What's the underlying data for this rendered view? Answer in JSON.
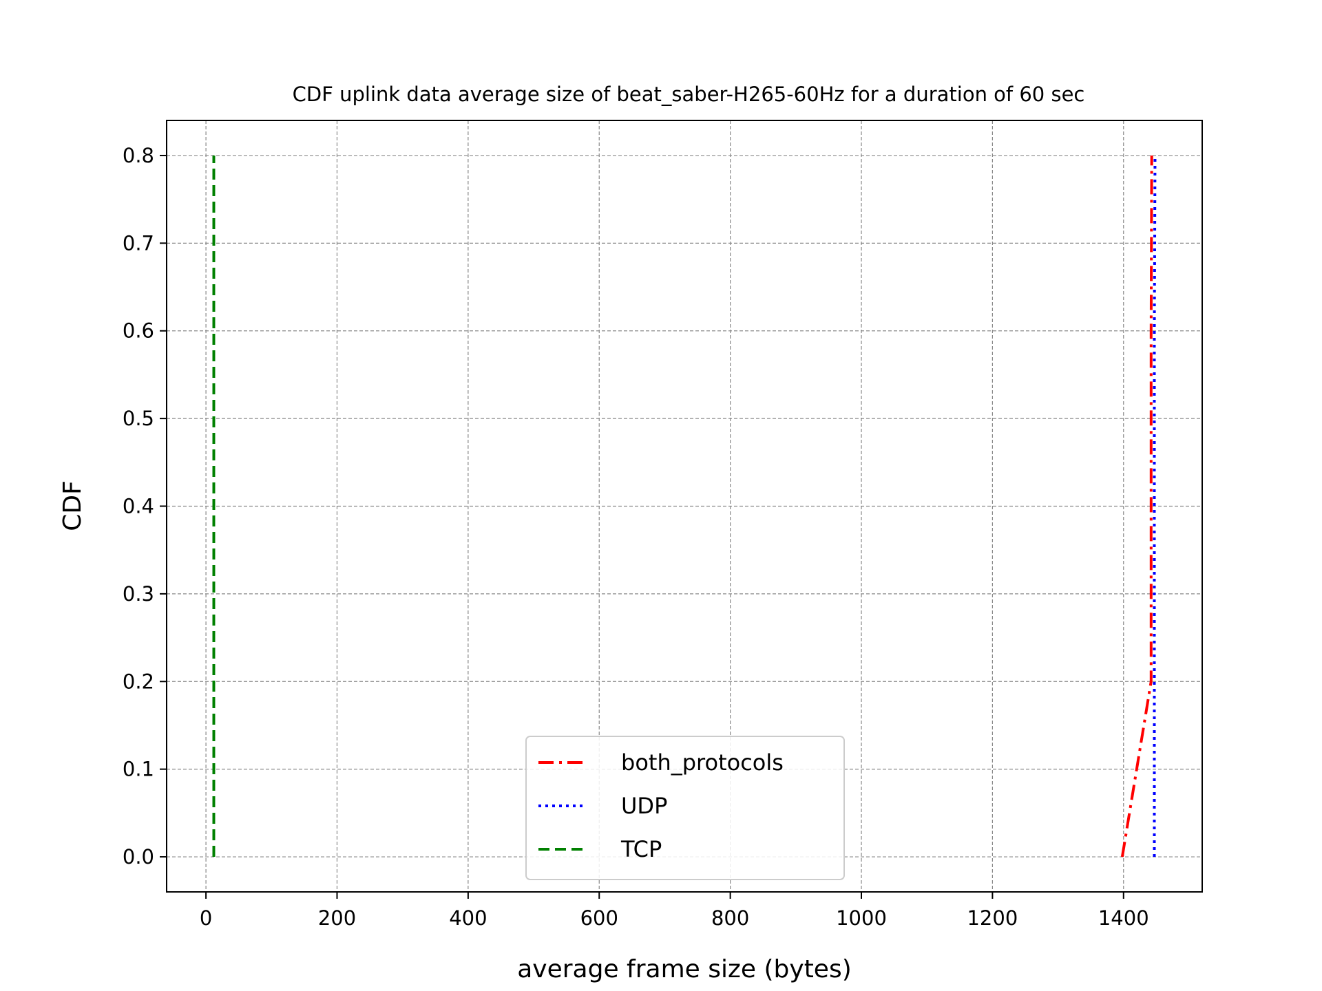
{
  "chart_data": {
    "type": "line",
    "title": "CDF uplink data average size of beat_saber-H265-60Hz for a duration of 60 sec",
    "xlabel": "average frame size (bytes)",
    "ylabel": "CDF",
    "xlim": [
      -60,
      1520
    ],
    "ylim": [
      -0.04,
      0.84
    ],
    "xticks": [
      0,
      200,
      400,
      600,
      800,
      1000,
      1200,
      1400
    ],
    "xtick_labels": [
      "0",
      "200",
      "400",
      "600",
      "800",
      "1000",
      "1200",
      "1400"
    ],
    "yticks": [
      0.0,
      0.1,
      0.2,
      0.3,
      0.4,
      0.5,
      0.6,
      0.7,
      0.8
    ],
    "ytick_labels": [
      "0.0",
      "0.1",
      "0.2",
      "0.3",
      "0.4",
      "0.5",
      "0.6",
      "0.7",
      "0.8"
    ],
    "grid": true,
    "legend_position": "lower center",
    "series": [
      {
        "name": "both_protocols",
        "color": "#ff0000",
        "style": "dashdot",
        "x": [
          1398,
          1442,
          1442,
          1443
        ],
        "y": [
          0.0,
          0.2,
          0.6,
          0.8
        ]
      },
      {
        "name": "UDP",
        "color": "#0000ff",
        "style": "dotted",
        "x": [
          1447,
          1447,
          1448
        ],
        "y": [
          0.0,
          0.6,
          0.8
        ]
      },
      {
        "name": "TCP",
        "color": "#008000",
        "style": "dashed",
        "x": [
          12,
          12,
          12
        ],
        "y": [
          0.0,
          0.4,
          0.8
        ]
      }
    ]
  }
}
